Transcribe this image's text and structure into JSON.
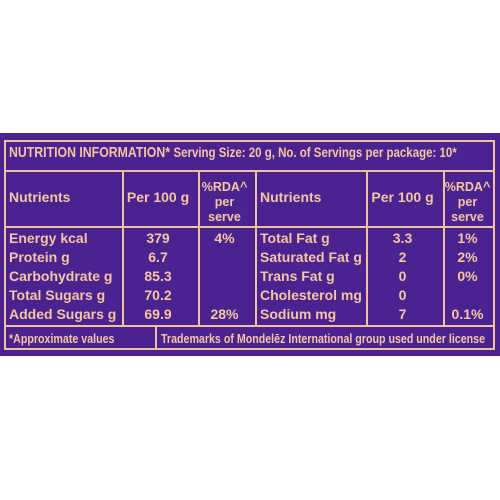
{
  "header": {
    "title": "NUTRITION INFORMATION*",
    "serving": "Serving Size: 20 g, No. of Servings per package: 10*"
  },
  "table": {
    "columns": [
      "Nutrients",
      "Per 100 g",
      "%RDA^ per serve",
      "Nutrients",
      "Per 100 g",
      "%RDA^ per serve"
    ],
    "rows": [
      [
        "Energy kcal",
        "379",
        "4%",
        "Total Fat g",
        "3.3",
        "1%"
      ],
      [
        "Protein g",
        "6.7",
        null,
        "Saturated Fat g",
        "2",
        "2%"
      ],
      [
        "Carbohydrate g",
        "85.3",
        null,
        "Trans Fat g",
        "0",
        "0%"
      ],
      [
        "Total Sugars g",
        "70.2",
        null,
        "Cholesterol mg",
        "0",
        null
      ],
      [
        "Added Sugars g",
        "69.9",
        "28%",
        "Sodium mg",
        "7",
        "0.1%"
      ]
    ]
  },
  "footer": {
    "note": "*Approximate values",
    "trademark": "Trademarks of Mondelēz International group used under license"
  }
}
